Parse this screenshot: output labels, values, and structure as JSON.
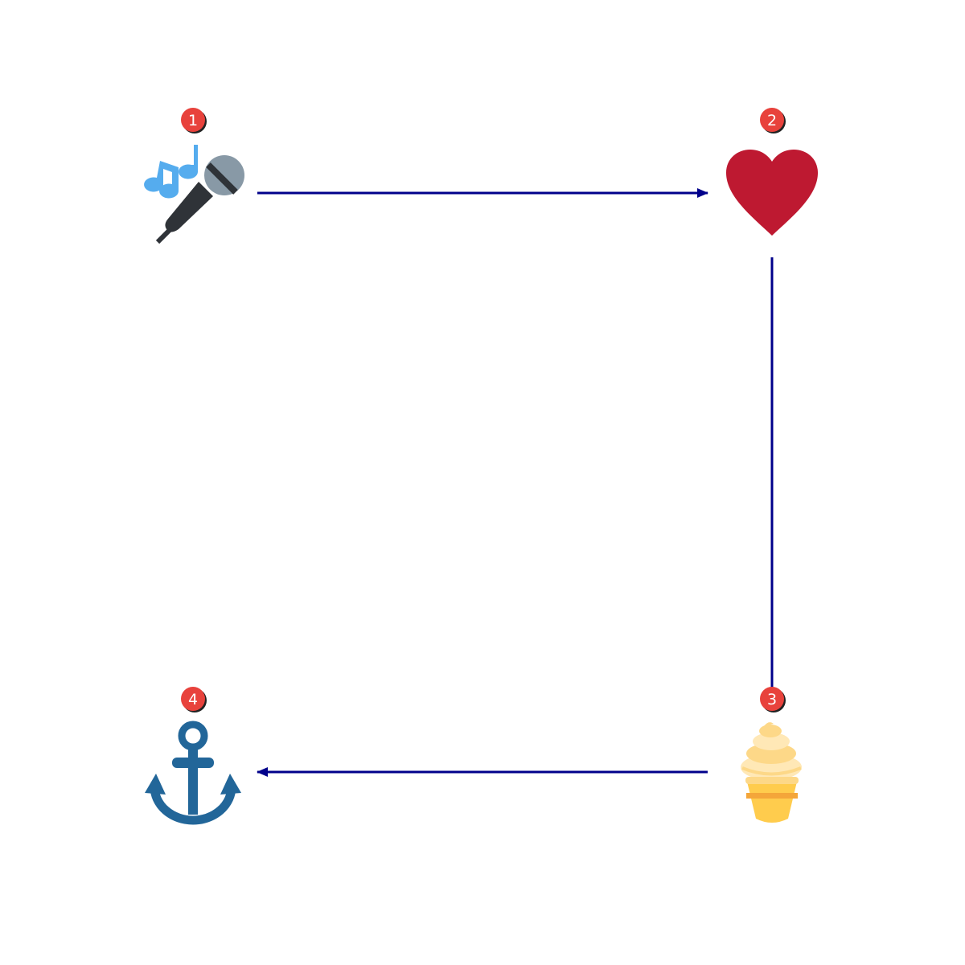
{
  "colors": {
    "arrow": "#00008b",
    "badge_fill": "#e8423c",
    "badge_shadow": "#222222"
  },
  "nodes": [
    {
      "id": "node-1",
      "badge": "1",
      "icon": "microphone-music-icon"
    },
    {
      "id": "node-2",
      "badge": "2",
      "icon": "heart-icon"
    },
    {
      "id": "node-3",
      "badge": "3",
      "icon": "soft-ice-cream-icon"
    },
    {
      "id": "node-4",
      "badge": "4",
      "icon": "anchor-icon"
    }
  ],
  "edges": [
    {
      "from": "1",
      "to": "2",
      "directed": true
    },
    {
      "from": "2",
      "to": "3",
      "directed": false
    },
    {
      "from": "3",
      "to": "4",
      "directed": true
    }
  ]
}
